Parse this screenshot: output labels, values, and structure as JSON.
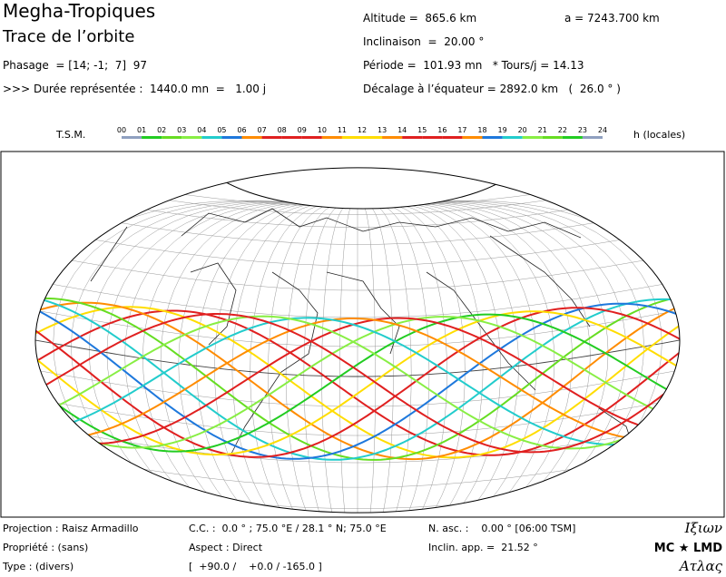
{
  "header": {
    "title": "Megha-Tropiques",
    "subtitle": "Trace de l’orbite",
    "phasage": "Phasage  = [14; -1;  7]  97",
    "duree": ">>> Durée représentée :  1440.0 mn  =   1.00 j",
    "altitude": "Altitude =  865.6 km",
    "demi_grand_axe": "a = 7243.700 km",
    "inclinaison": "Inclinaison  =  20.00 °",
    "periode": "Période =  101.93 mn   * Tours/j = 14.13",
    "decalage": "Décalage à l’équateur = 2892.0 km   (  26.0 ° )"
  },
  "legend": {
    "label": "T.S.M.",
    "hours": [
      "00",
      "01",
      "02",
      "03",
      "04",
      "05",
      "06",
      "07",
      "08",
      "09",
      "10",
      "11",
      "12",
      "13",
      "14",
      "15",
      "16",
      "17",
      "18",
      "19",
      "20",
      "21",
      "22",
      "23",
      "24"
    ],
    "unit": "h (locales)",
    "colors": [
      "#8fa0c0",
      "#22cc22",
      "#66dd22",
      "#88ee44",
      "#22cccc",
      "#1e78dc",
      "#ff8c00",
      "#e02020",
      "#e02020",
      "#e02020",
      "#ff8c00",
      "#ffdd00",
      "#ffdd00",
      "#ff8c00",
      "#e02020",
      "#e02020",
      "#e02020",
      "#ff8c00",
      "#1e78dc",
      "#22cccc",
      "#88ee44",
      "#66dd22",
      "#22cc22",
      "#8fa0c0"
    ]
  },
  "footer": {
    "projection": "Projection : Raisz Armadillo",
    "propriete": "Propriété : (sans)",
    "type": "Type : (divers)",
    "cc": "C.C. :  0.0 ° ; 75.0 °E / 28.1 ° N; 75.0 °E",
    "aspect": "Aspect : Direct",
    "angles": "[  +90.0 /    +0.0 / -165.0 ]",
    "nasc": "N. asc. :    0.00 ° [06:00 TSM]",
    "inclin_app": "Inclin. app. =  21.52 °",
    "logo_top": "Iξιων",
    "logo_mid": "MC ★ LMD",
    "logo_bottom": "Ατλας"
  }
}
